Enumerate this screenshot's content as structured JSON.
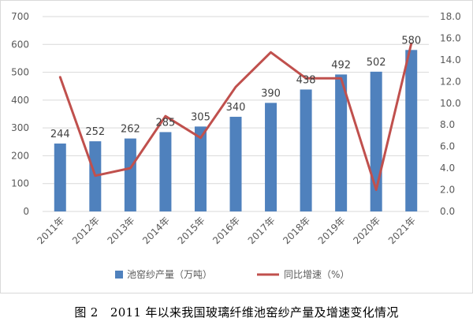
{
  "caption": "图 2　2011 年以来我国玻璃纤维池窑纱产量及增速变化情况",
  "colors": {
    "bar": "#4f81bd",
    "line": "#c0504d",
    "grid": "#d9d9d9",
    "axis_text": "#595959"
  },
  "chart_data": {
    "type": "bar",
    "categories": [
      "2011年",
      "2012年",
      "2013年",
      "2014年",
      "2015年",
      "2016年",
      "2017年",
      "2018年",
      "2019年",
      "2020年",
      "2021年"
    ],
    "series": [
      {
        "name": "池窑纱产量（万吨）",
        "type": "bar",
        "axis": "left",
        "values": [
          244,
          252,
          262,
          285,
          305,
          340,
          390,
          438,
          492,
          502,
          580
        ],
        "labels": [
          "244",
          "252",
          "262",
          "285",
          "305",
          "340",
          "390",
          "438",
          "492",
          "502",
          "580"
        ]
      },
      {
        "name": "同比增速（%）",
        "type": "line",
        "axis": "right",
        "values": [
          12.4,
          3.3,
          4.0,
          8.8,
          6.8,
          11.5,
          14.7,
          12.3,
          12.3,
          2.0,
          15.5
        ]
      }
    ],
    "y_left": {
      "ylim": [
        0,
        700
      ],
      "ticks": [
        "0",
        "100",
        "200",
        "300",
        "400",
        "500",
        "600",
        "700"
      ]
    },
    "y_right": {
      "ylim": [
        0,
        18
      ],
      "ticks": [
        "0.0",
        "2.0",
        "4.0",
        "6.0",
        "8.0",
        "10.0",
        "12.0",
        "14.0",
        "16.0",
        "18.0"
      ]
    },
    "grid": true,
    "legend": "bottom"
  }
}
